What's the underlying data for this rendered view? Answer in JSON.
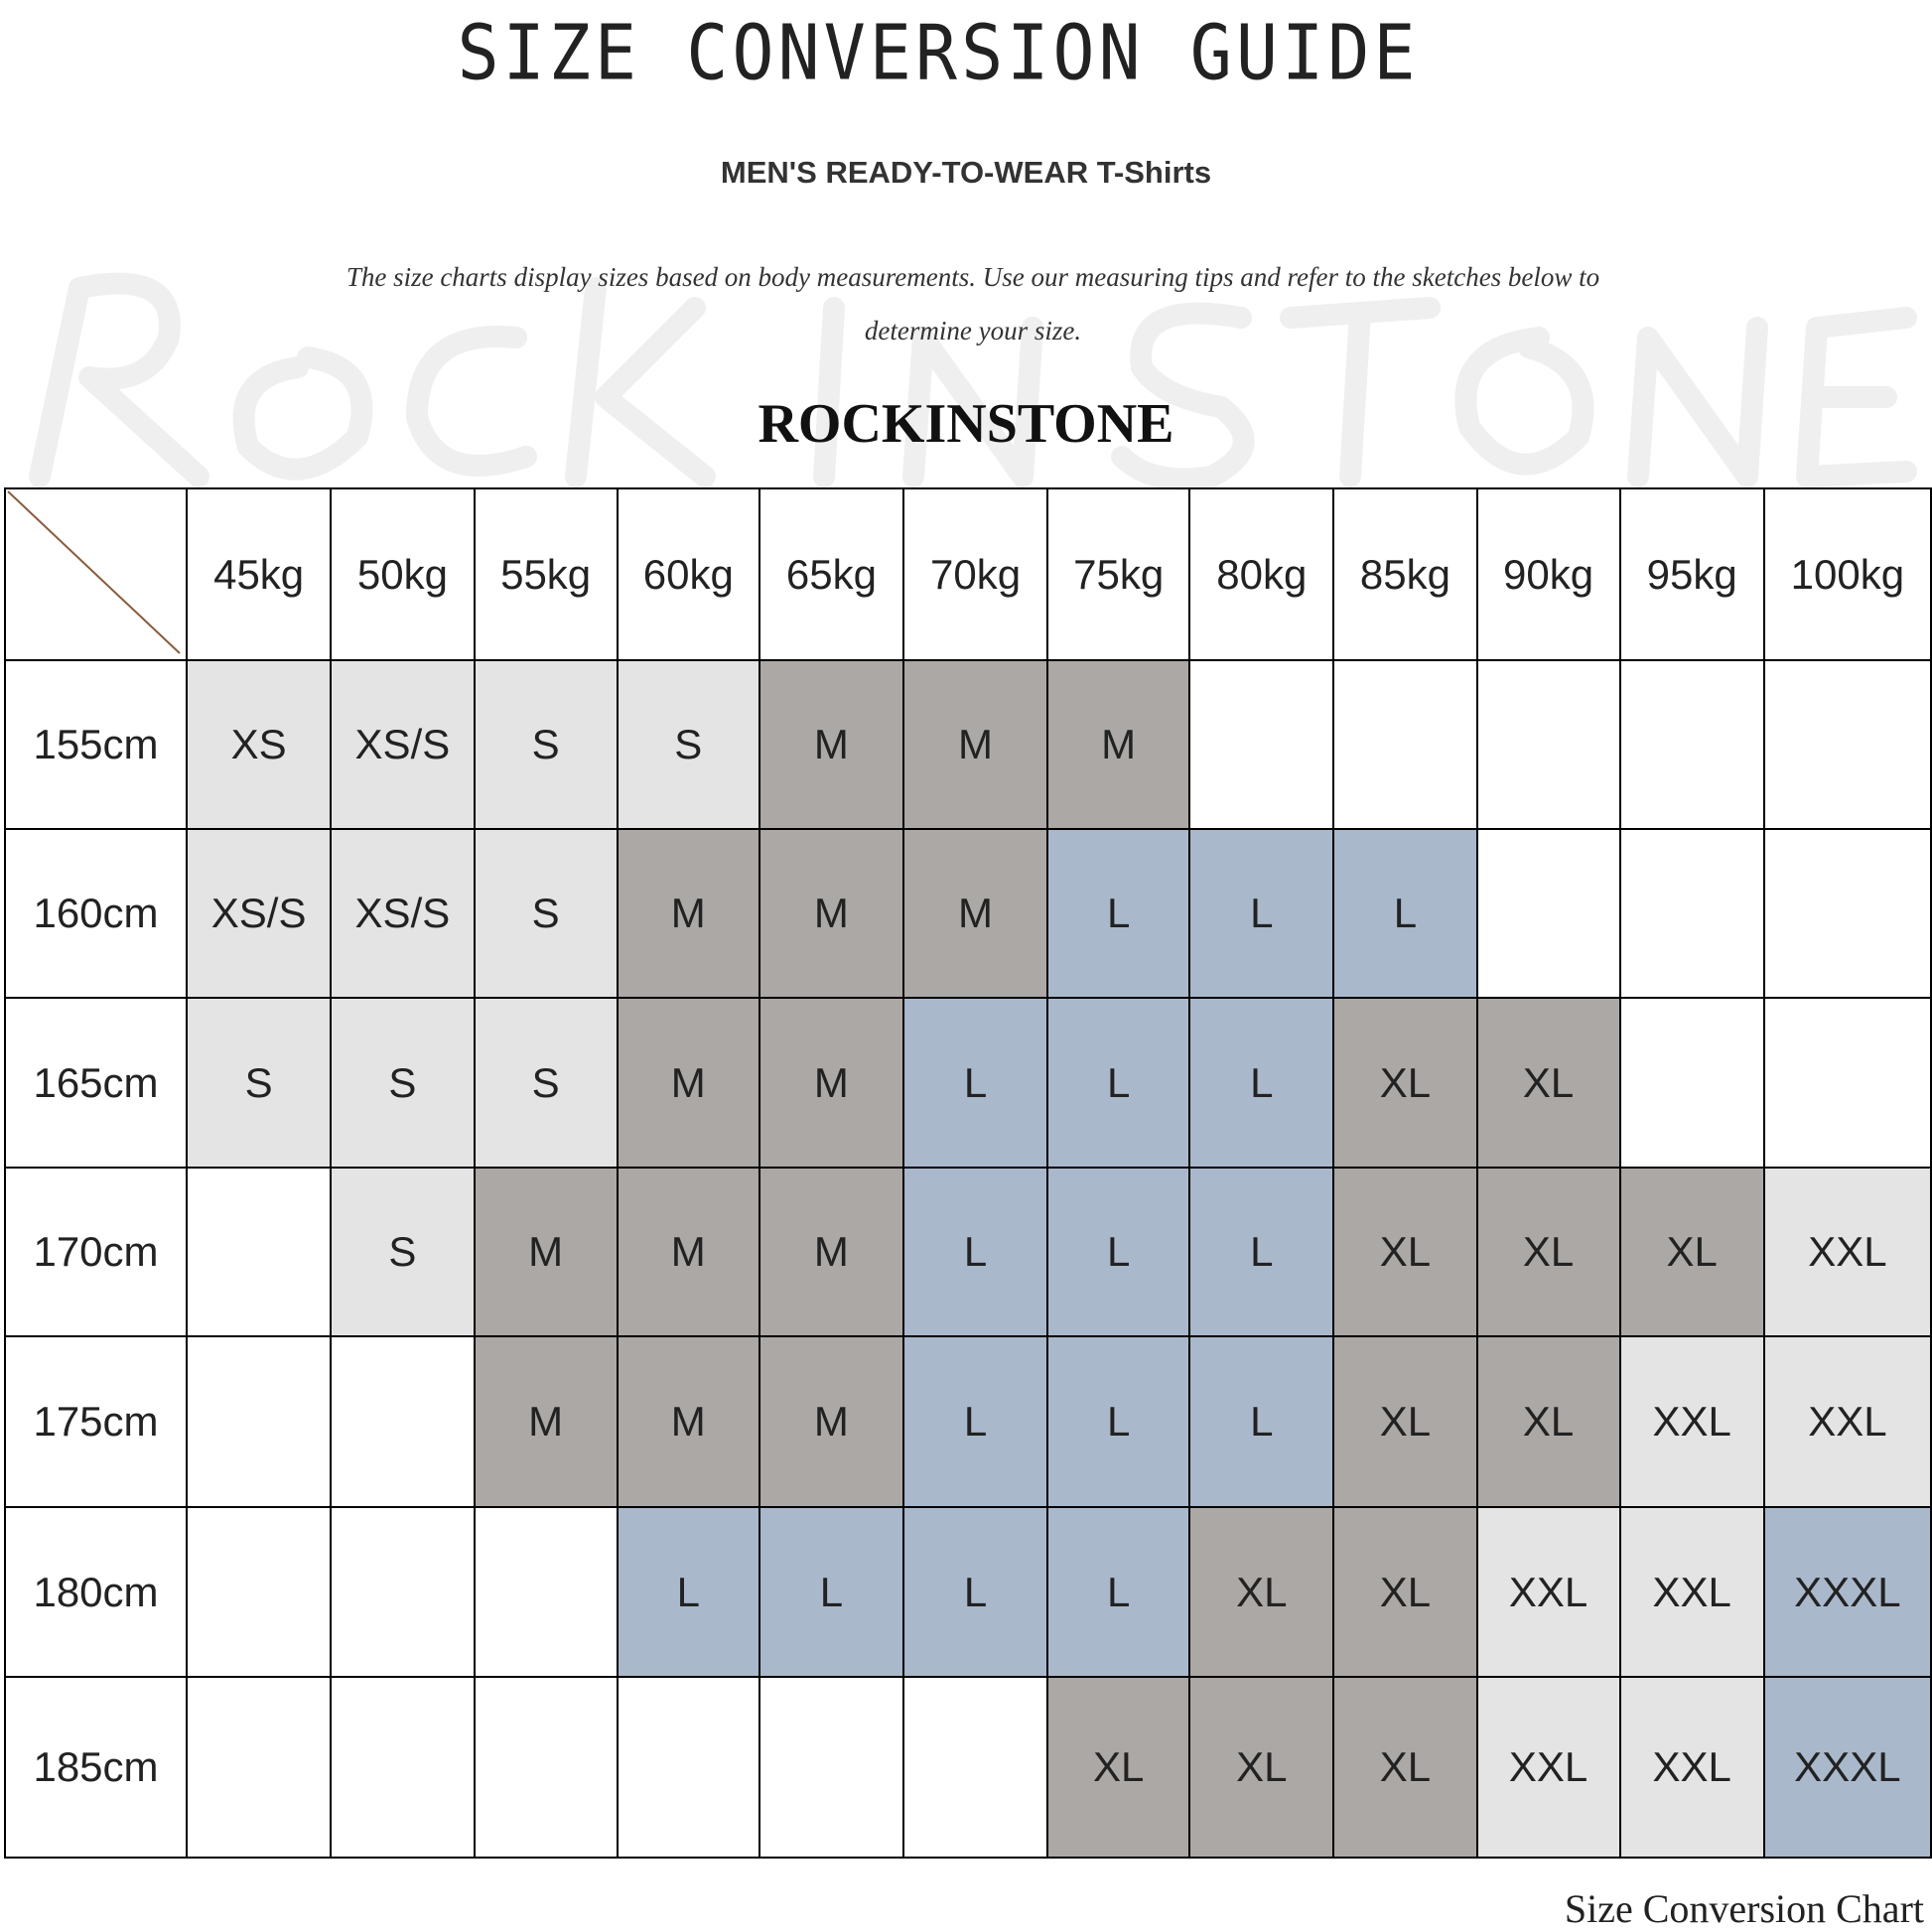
{
  "title": "SIZE CONVERSION GUIDE",
  "subtitle": "MEN'S READY-TO-WEAR T-Shirts",
  "description": "The size charts display sizes based on body measurements. Use our measuring tips and refer to the sketches below to determine your size.",
  "watermark": "Rockinstone",
  "brand": "ROCKINSTONE",
  "footer": "Size Conversion Chart",
  "colors": {
    "XS": "#e4e4e4",
    "XS/S": "#e4e4e4",
    "S": "#e4e4e4",
    "M": "#aba8a6",
    "L": "#aab8cc",
    "XL": "#aba8a6",
    "XXL": "#e4e4e4",
    "XXXL": "#aab8cc",
    "empty": "#ffffff"
  },
  "weights": [
    "45kg",
    "50kg",
    "55kg",
    "60kg",
    "65kg",
    "70kg",
    "75kg",
    "80kg",
    "85kg",
    "90kg",
    "95kg",
    "100kg"
  ],
  "rows": [
    {
      "height": "155cm",
      "sizes": [
        "XS",
        "XS/S",
        "S",
        "S",
        "M",
        "M",
        "M",
        "",
        "",
        "",
        "",
        ""
      ]
    },
    {
      "height": "160cm",
      "sizes": [
        "XS/S",
        "XS/S",
        "S",
        "M",
        "M",
        "M",
        "L",
        "L",
        "L",
        "",
        "",
        ""
      ]
    },
    {
      "height": "165cm",
      "sizes": [
        "S",
        "S",
        "S",
        "M",
        "M",
        "L",
        "L",
        "L",
        "XL",
        "XL",
        "",
        ""
      ]
    },
    {
      "height": "170cm",
      "sizes": [
        "",
        "S",
        "M",
        "M",
        "M",
        "L",
        "L",
        "L",
        "XL",
        "XL",
        "XL",
        "XXL"
      ]
    },
    {
      "height": "175cm",
      "sizes": [
        "",
        "",
        "M",
        "M",
        "M",
        "L",
        "L",
        "L",
        "XL",
        "XL",
        "XXL",
        "XXL"
      ]
    },
    {
      "height": "180cm",
      "sizes": [
        "",
        "",
        "",
        "L",
        "L",
        "L",
        "L",
        "XL",
        "XL",
        "XXL",
        "XXL",
        "XXXL"
      ]
    },
    {
      "height": "185cm",
      "sizes": [
        "",
        "",
        "",
        "",
        "",
        "",
        "XL",
        "XL",
        "XL",
        "XXL",
        "XXL",
        "XXXL"
      ]
    }
  ]
}
